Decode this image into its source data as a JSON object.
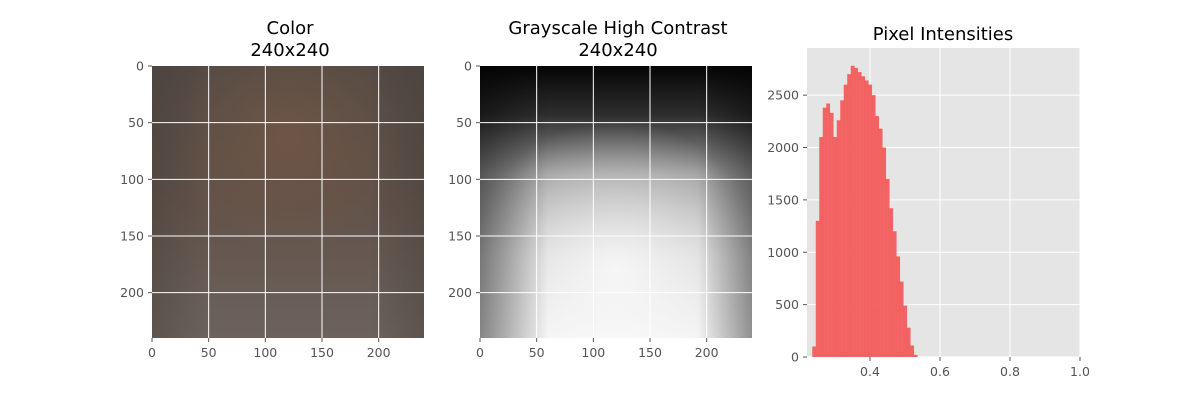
{
  "chart_data": [
    {
      "type": "image",
      "title_line1": "Color",
      "title_line2": "240x240",
      "xlim": [
        0,
        240
      ],
      "ylim": [
        240,
        0
      ],
      "xticks": [
        "0",
        "50",
        "100",
        "150",
        "200"
      ],
      "yticks": [
        "0",
        "50",
        "100",
        "150",
        "200"
      ],
      "grid": true,
      "colormap": "rgb"
    },
    {
      "type": "image",
      "title_line1": "Grayscale High Contrast",
      "title_line2": "240x240",
      "xlim": [
        0,
        240
      ],
      "ylim": [
        240,
        0
      ],
      "xticks": [
        "0",
        "50",
        "100",
        "150",
        "200"
      ],
      "yticks": [
        "0",
        "50",
        "100",
        "150",
        "200"
      ],
      "grid": true,
      "colormap": "gray"
    },
    {
      "type": "histogram",
      "title": "Pixel Intensities",
      "xlim": [
        0.22,
        1.0
      ],
      "ylim": [
        0,
        2950
      ],
      "xticks": [
        "0.4",
        "0.6",
        "0.8",
        "1.0"
      ],
      "yticks": [
        "0",
        "500",
        "1000",
        "1500",
        "2000",
        "2500"
      ],
      "bar_color": "#f25c5c",
      "grid": true,
      "x": [
        0.24,
        0.25,
        0.26,
        0.27,
        0.28,
        0.29,
        0.3,
        0.31,
        0.32,
        0.33,
        0.34,
        0.35,
        0.36,
        0.37,
        0.38,
        0.39,
        0.4,
        0.41,
        0.42,
        0.43,
        0.44,
        0.45,
        0.46,
        0.47,
        0.48,
        0.49,
        0.5,
        0.51,
        0.52,
        0.53
      ],
      "y": [
        100,
        1300,
        2100,
        2380,
        2420,
        2330,
        2100,
        2260,
        2450,
        2600,
        2700,
        2780,
        2760,
        2720,
        2680,
        2640,
        2600,
        2500,
        2300,
        2180,
        2000,
        1700,
        1420,
        1200,
        960,
        720,
        490,
        280,
        110,
        20
      ]
    }
  ]
}
